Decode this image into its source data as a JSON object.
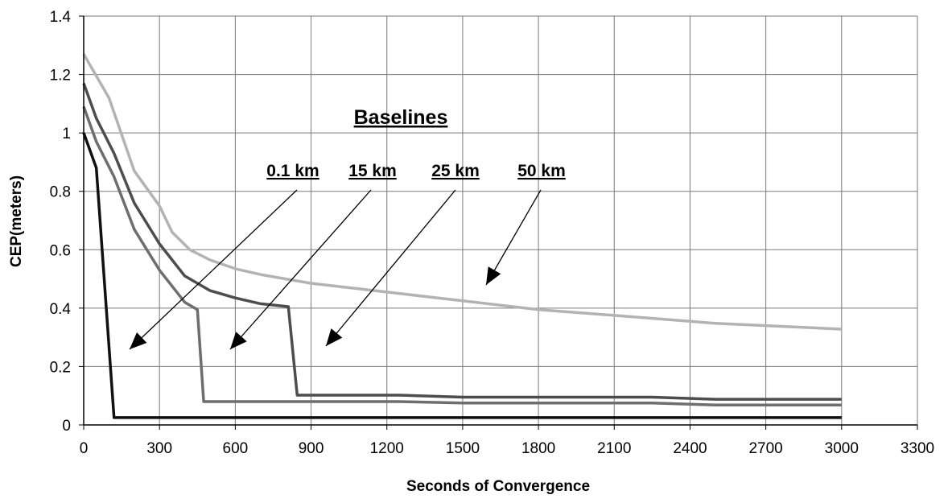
{
  "chart_data": {
    "type": "line",
    "xlabel": "Seconds of Convergence",
    "ylabel": "CEP(meters)",
    "xlim": [
      0,
      3300
    ],
    "ylim": [
      0,
      1.4
    ],
    "xticks": [
      "0",
      "300",
      "600",
      "900",
      "1200",
      "1500",
      "1800",
      "2100",
      "2400",
      "2700",
      "3000",
      "3300"
    ],
    "yticks": [
      "0",
      "0.2",
      "0.4",
      "0.6",
      "0.8",
      "1",
      "1.2",
      "1.4"
    ],
    "grid": true,
    "series": [
      {
        "name": "0.1 km",
        "color": "#111111",
        "points": [
          [
            0,
            1.0
          ],
          [
            50,
            0.88
          ],
          [
            120,
            0.025
          ],
          [
            3000,
            0.025
          ]
        ]
      },
      {
        "name": "15 km",
        "color": "#6e6e6e",
        "points": [
          [
            0,
            1.09
          ],
          [
            50,
            0.97
          ],
          [
            120,
            0.85
          ],
          [
            200,
            0.67
          ],
          [
            300,
            0.53
          ],
          [
            400,
            0.42
          ],
          [
            450,
            0.395
          ],
          [
            475,
            0.08
          ],
          [
            1000,
            0.08
          ],
          [
            1250,
            0.08
          ],
          [
            1500,
            0.075
          ],
          [
            2000,
            0.075
          ],
          [
            2250,
            0.075
          ],
          [
            2500,
            0.068
          ],
          [
            3000,
            0.068
          ]
        ]
      },
      {
        "name": "25 km",
        "color": "#4d4d4d",
        "points": [
          [
            0,
            1.17
          ],
          [
            50,
            1.05
          ],
          [
            120,
            0.93
          ],
          [
            200,
            0.76
          ],
          [
            300,
            0.62
          ],
          [
            400,
            0.51
          ],
          [
            500,
            0.46
          ],
          [
            600,
            0.435
          ],
          [
            700,
            0.415
          ],
          [
            810,
            0.405
          ],
          [
            845,
            0.102
          ],
          [
            1000,
            0.102
          ],
          [
            1250,
            0.102
          ],
          [
            1500,
            0.095
          ],
          [
            2000,
            0.095
          ],
          [
            2250,
            0.095
          ],
          [
            2500,
            0.088
          ],
          [
            3000,
            0.088
          ]
        ]
      },
      {
        "name": "50 km",
        "color": "#b3b3b3",
        "points": [
          [
            0,
            1.27
          ],
          [
            100,
            1.12
          ],
          [
            200,
            0.87
          ],
          [
            300,
            0.75
          ],
          [
            350,
            0.66
          ],
          [
            420,
            0.6
          ],
          [
            500,
            0.565
          ],
          [
            600,
            0.535
          ],
          [
            700,
            0.515
          ],
          [
            800,
            0.5
          ],
          [
            900,
            0.485
          ],
          [
            1200,
            0.455
          ],
          [
            1500,
            0.425
          ],
          [
            1800,
            0.395
          ],
          [
            2100,
            0.375
          ],
          [
            2400,
            0.355
          ],
          [
            2500,
            0.348
          ],
          [
            2700,
            0.34
          ],
          [
            3000,
            0.328
          ]
        ]
      }
    ],
    "annotations": {
      "title": "Baselines",
      "labels": [
        "0.1 km",
        "15 km",
        "25 km",
        "50 km"
      ]
    }
  }
}
